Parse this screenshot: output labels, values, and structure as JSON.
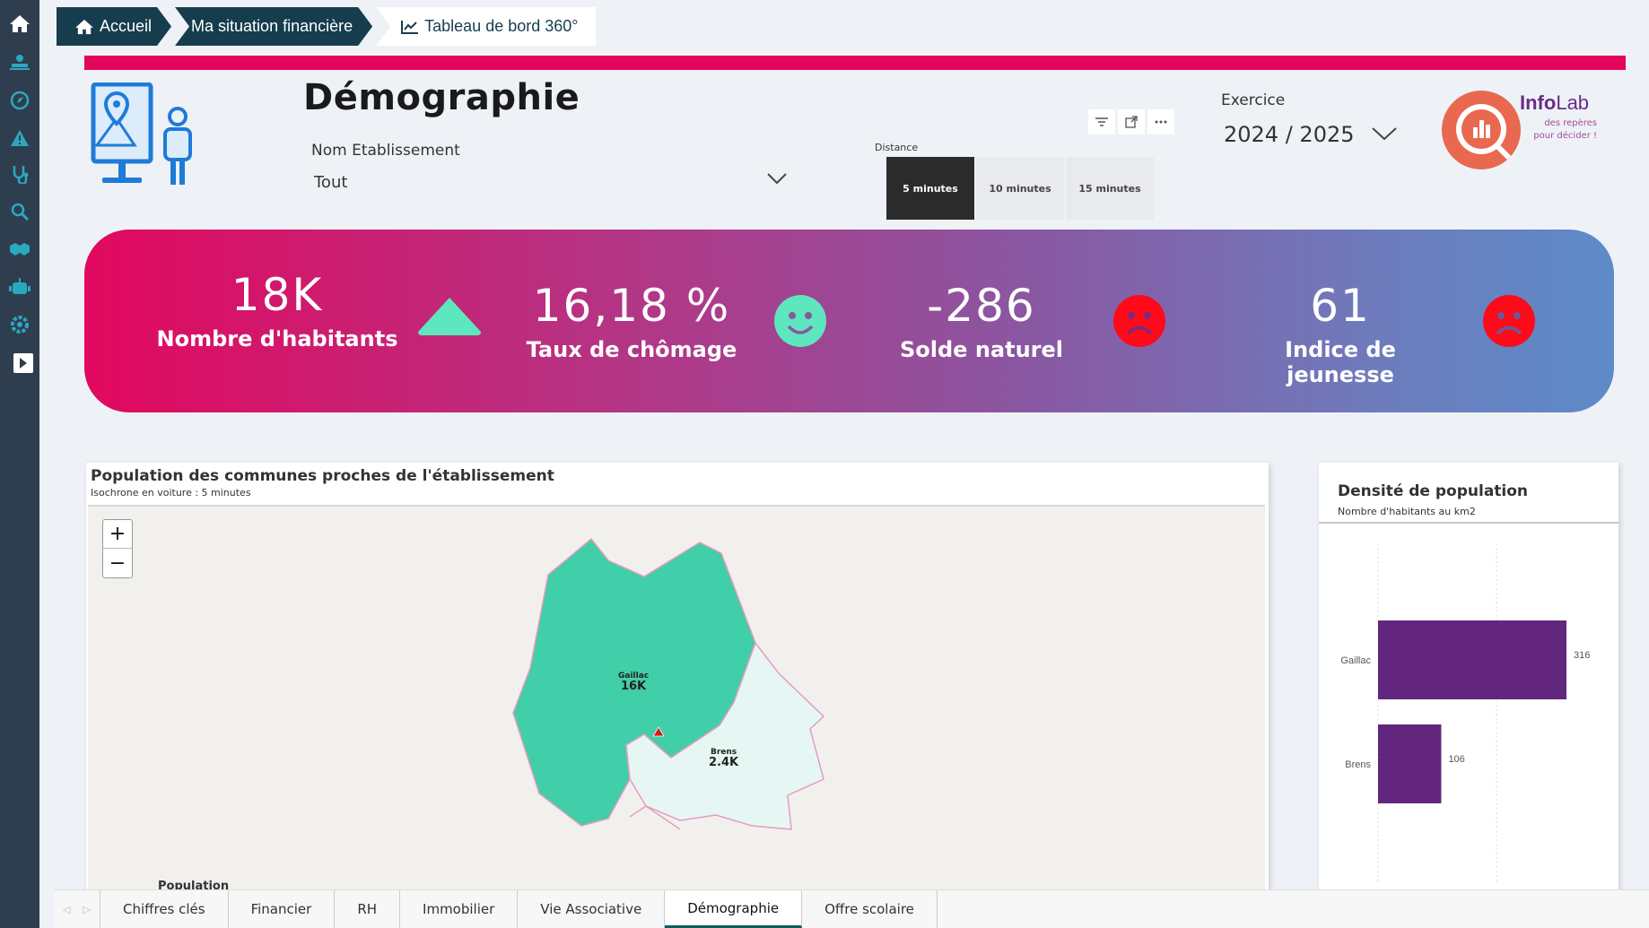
{
  "breadcrumb": {
    "home": "Accueil",
    "situation": "Ma situation financière",
    "dashboard": "Tableau de bord 360°"
  },
  "header": {
    "title": "Démographie",
    "etab_label": "Nom Etablissement",
    "etab_value": "Tout",
    "distance_label": "Distance",
    "distance_options": [
      "5 minutes",
      "10 minutes",
      "15 minutes"
    ],
    "distance_selected": "5 minutes",
    "exercice_label": "Exercice",
    "exercice_value": "2024 / 2025",
    "logo_brand_a": "Info",
    "logo_brand_b": "Lab",
    "logo_tag": "des repères pour décider !"
  },
  "kpis": [
    {
      "value": "18K",
      "label": "Nombre d'habitants",
      "status": "up-triangle",
      "color": "#5ee6bf"
    },
    {
      "value": "16,18 %",
      "label": "Taux de chômage",
      "status": "happy-face",
      "color": "#5ee6bf"
    },
    {
      "value": "-286",
      "label": "Solde naturel",
      "status": "sad-face",
      "color": "#ff0a1a"
    },
    {
      "value": "61",
      "label": "Indice de jeunesse",
      "status": "sad-face",
      "color": "#ff0a1a"
    }
  ],
  "map": {
    "title": "Population des communes proches de l'établissement",
    "subtitle": "Isochrone en voiture : 5 minutes",
    "legend_title": "Population",
    "communes": [
      {
        "name": "Gaillac",
        "population": "16K",
        "color": "#40cfa8"
      },
      {
        "name": "Brens",
        "population": "2.4K",
        "color": "#e6f6f2"
      }
    ]
  },
  "density": {
    "title": "Densité de population",
    "subtitle": "Nombre d'habitants au km2"
  },
  "chart_data": {
    "type": "bar",
    "orientation": "horizontal",
    "title": "Densité de population",
    "subtitle": "Nombre d'habitants au km2",
    "categories": [
      "Gaillac",
      "Brens"
    ],
    "values": [
      316,
      106
    ],
    "color": "#62267f"
  },
  "tabs": [
    "Chiffres clés",
    "Financier",
    "RH",
    "Immobilier",
    "Vie Associative",
    "Démographie",
    "Offre scolaire"
  ],
  "active_tab": "Démographie"
}
